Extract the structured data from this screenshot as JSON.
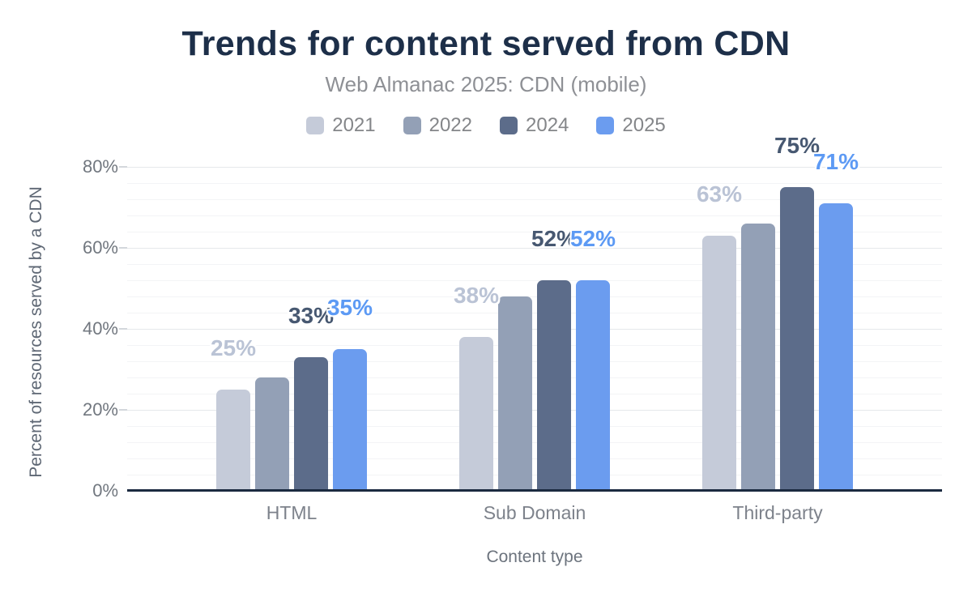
{
  "chart_data": {
    "type": "bar",
    "title": "Trends for content served from CDN",
    "subtitle": "Web Almanac 2025: CDN (mobile)",
    "categories": [
      "HTML",
      "Sub Domain",
      "Third-party"
    ],
    "series": [
      {
        "name": "2021",
        "color": "#c5cbd9",
        "label_color": "#bac3d5",
        "values": [
          25,
          38,
          63
        ],
        "labels": [
          "25%",
          "38%",
          "63%"
        ],
        "labels_visible": true
      },
      {
        "name": "2022",
        "color": "#93a0b6",
        "label_color": "#93a0b6",
        "values": [
          28,
          48,
          66
        ],
        "labels": [
          "",
          "",
          ""
        ],
        "labels_visible": false
      },
      {
        "name": "2024",
        "color": "#5c6c8a",
        "label_color": "#475871",
        "values": [
          33,
          52,
          75
        ],
        "labels": [
          "33%",
          "52%",
          "75%"
        ],
        "labels_visible": true
      },
      {
        "name": "2025",
        "color": "#6b9cef",
        "label_color": "#5d9af4",
        "values": [
          35,
          52,
          71
        ],
        "labels": [
          "35%",
          "52%",
          "71%"
        ],
        "labels_visible": true
      }
    ],
    "xlabel": "Content type",
    "ylabel": "Percent of resources served by a CDN",
    "ylim": [
      0,
      80
    ],
    "y_ticks": [
      "0%",
      "20%",
      "40%",
      "60%",
      "80%"
    ],
    "y_tick_values": [
      0,
      20,
      40,
      60,
      80
    ],
    "minor_grid_step_percent": 4,
    "grid": "on",
    "legend_position": "top"
  },
  "colors": {
    "title": "#1d2f49",
    "subtitle": "#8e9095",
    "axis_line": "#1b2a40",
    "major_grid": "#e6e8eb",
    "minor_grid": "#f3f4f6",
    "tick_mark": "#d3d7dc",
    "tick_label": "#71777f",
    "category_label": "#7d828b",
    "axis_title": "#5e6774",
    "legend_label": "#848689",
    "background": "#ffffff"
  }
}
